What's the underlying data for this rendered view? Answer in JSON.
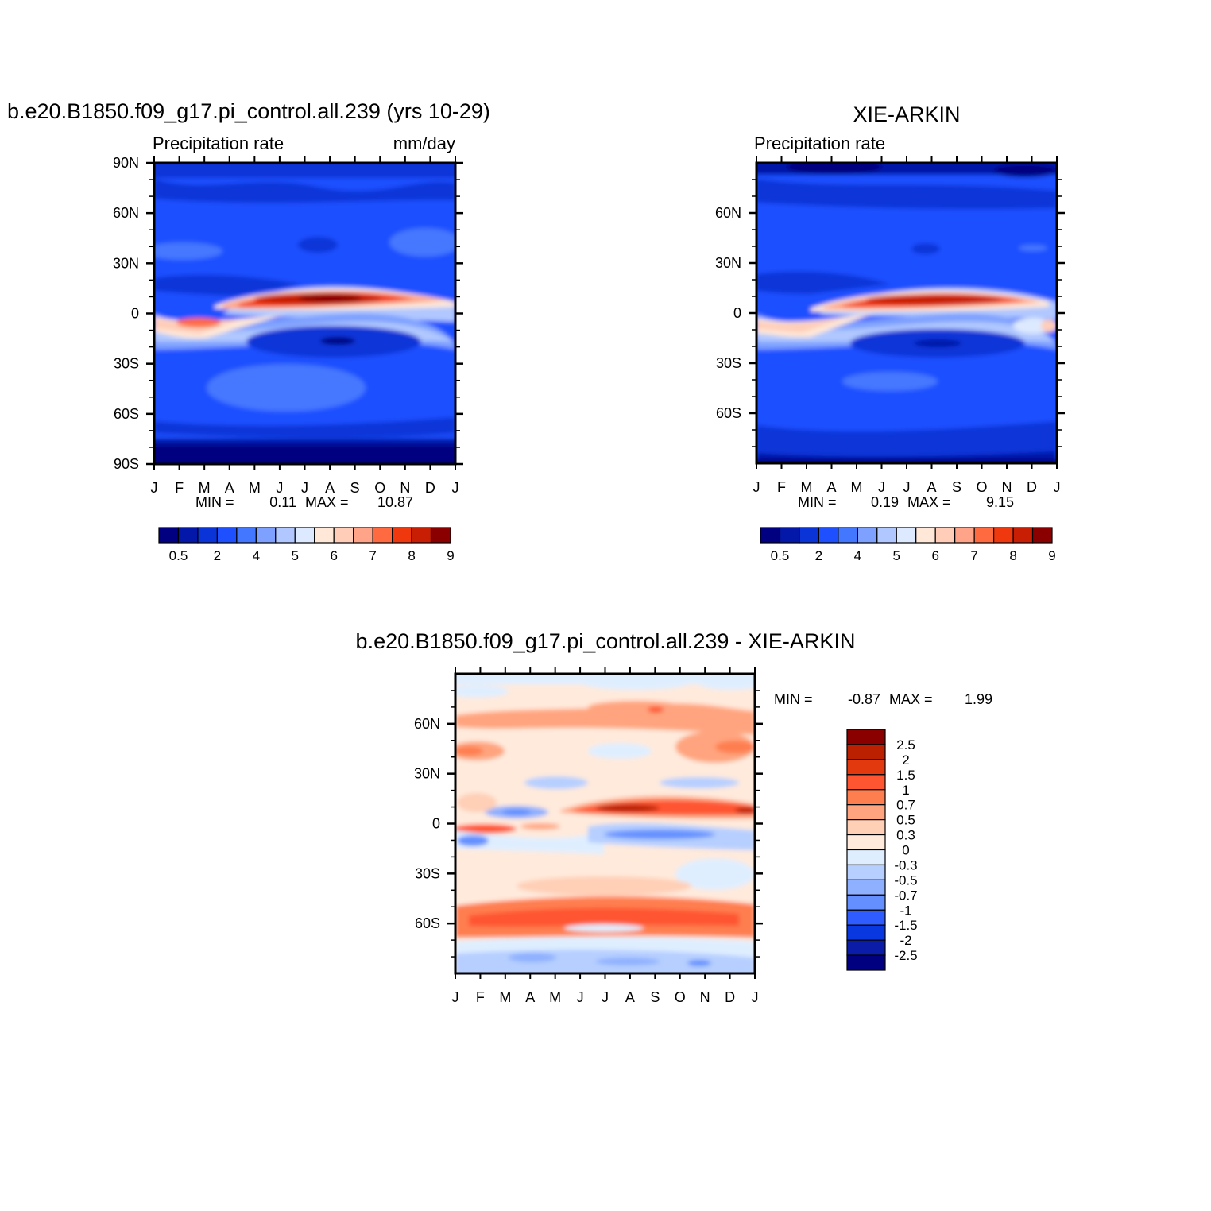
{
  "figure": {
    "panels": [
      {
        "id": "model",
        "title": "b.e20.B1850.f09_g17.pi_control.all.239 (yrs 10-29)",
        "left_string": "Precipitation rate",
        "right_string": "mm/day",
        "stats": {
          "min_label": "MIN =",
          "min": "0.11",
          "max_label": "MAX =",
          "max": "10.87"
        }
      },
      {
        "id": "obs",
        "title": "XIE-ARKIN",
        "left_string": "Precipitation rate",
        "right_string": "",
        "stats": {
          "min_label": "MIN =",
          "min": "0.19",
          "max_label": "MAX =",
          "max": "9.15"
        }
      },
      {
        "id": "diff",
        "title": "b.e20.B1850.f09_g17.pi_control.all.239 - XIE-ARKIN",
        "left_string": "",
        "right_string": "",
        "stats": {
          "min_label": "MIN =",
          "min": "-0.87",
          "max_label": "MAX =",
          "max": "1.99"
        }
      }
    ]
  },
  "chart_data": [
    {
      "type": "heatmap",
      "title": "b.e20.B1850.f09_g17.pi_control.all.239 (yrs 10-29)",
      "variable": "Precipitation rate",
      "units": "mm/day",
      "x": [
        "J",
        "F",
        "M",
        "A",
        "M",
        "J",
        "J",
        "A",
        "S",
        "O",
        "N",
        "D",
        "J"
      ],
      "y_ticks": [
        "90N",
        "60N",
        "30N",
        "0",
        "30S",
        "60S",
        "90S"
      ],
      "y_values": [
        90,
        60,
        30,
        0,
        -30,
        -60,
        -90
      ],
      "ylim": [
        -90,
        90
      ],
      "levels": [
        0.5,
        1,
        2,
        3,
        4,
        4.5,
        5,
        5.5,
        6,
        6.5,
        7,
        7.5,
        8,
        9
      ],
      "colorbar_labels": [
        "0.5",
        "2",
        "4",
        "5",
        "6",
        "7",
        "8",
        "9"
      ],
      "min": 0.11,
      "max": 10.87
    },
    {
      "type": "heatmap",
      "title": "XIE-ARKIN",
      "variable": "Precipitation rate",
      "x": [
        "J",
        "F",
        "M",
        "A",
        "M",
        "J",
        "J",
        "A",
        "S",
        "O",
        "N",
        "D",
        "J"
      ],
      "y_ticks": [
        "60N",
        "30N",
        "0",
        "30S",
        "60S"
      ],
      "y_values": [
        60,
        30,
        0,
        -30,
        -60
      ],
      "ylim": [
        -90,
        90
      ],
      "levels": [
        0.5,
        1,
        2,
        3,
        4,
        4.5,
        5,
        5.5,
        6,
        6.5,
        7,
        7.5,
        8,
        9
      ],
      "colorbar_labels": [
        "0.5",
        "2",
        "4",
        "5",
        "6",
        "7",
        "8",
        "9"
      ],
      "min": 0.19,
      "max": 9.15
    },
    {
      "type": "heatmap",
      "title": "b.e20.B1850.f09_g17.pi_control.all.239 - XIE-ARKIN",
      "x": [
        "J",
        "F",
        "M",
        "A",
        "M",
        "J",
        "J",
        "A",
        "S",
        "O",
        "N",
        "D",
        "J"
      ],
      "y_ticks": [
        "60N",
        "30N",
        "0",
        "30S",
        "60S"
      ],
      "y_values": [
        60,
        30,
        0,
        -30,
        -60
      ],
      "ylim": [
        -90,
        90
      ],
      "levels": [
        -2.5,
        -2,
        -1.5,
        -1,
        -0.7,
        -0.5,
        -0.3,
        0,
        0.3,
        0.5,
        0.7,
        1,
        1.5,
        2,
        2.5
      ],
      "colorbar_labels": [
        "2.5",
        "2",
        "1.5",
        "1",
        "0.7",
        "0.5",
        "0.3",
        "0",
        "-0.3",
        "-0.5",
        "-0.7",
        "-1",
        "-1.5",
        "-2",
        "-2.5"
      ],
      "min": -0.87,
      "max": 1.99
    }
  ],
  "colors": {
    "precip_scale": [
      "#000080",
      "#0318a8",
      "#0a34d8",
      "#1e50ff",
      "#4477ff",
      "#7ea0ff",
      "#b0c8ff",
      "#dde9ff",
      "#ffe8d8",
      "#ffcdb8",
      "#ffa488",
      "#ff6a40",
      "#f0380e",
      "#c81e04",
      "#8a0000"
    ],
    "diff_scale": [
      "#8a0000",
      "#bb2000",
      "#e23a0e",
      "#ff5530",
      "#ff7e4f",
      "#ffa47e",
      "#ffcfb6",
      "#ffeadc",
      "#dfeeff",
      "#b6cfff",
      "#8eb0ff",
      "#6490ff",
      "#2e5cff",
      "#0a38e0",
      "#0a1ca8",
      "#000080"
    ]
  }
}
